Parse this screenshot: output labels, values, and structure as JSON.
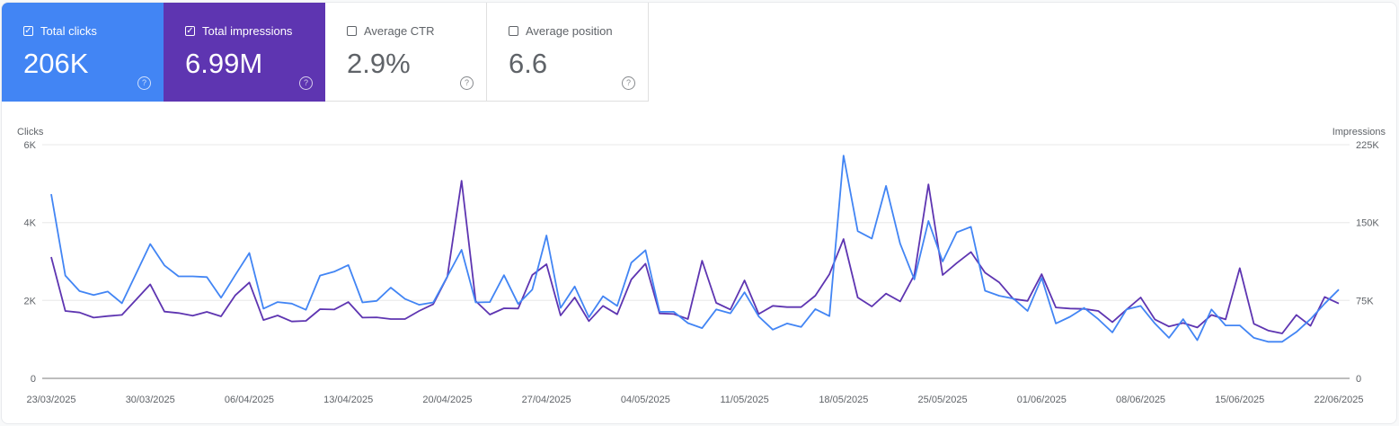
{
  "metrics": [
    {
      "label": "Total clicks",
      "value": "206K",
      "checked": true,
      "color": "#4285f4"
    },
    {
      "label": "Total impressions",
      "value": "6.99M",
      "checked": true,
      "color": "#5e35b1"
    },
    {
      "label": "Average CTR",
      "value": "2.9%",
      "checked": false
    },
    {
      "label": "Average position",
      "value": "6.6",
      "checked": false
    }
  ],
  "chart_data": {
    "type": "line",
    "left_axis": {
      "label": "Clicks",
      "ticks": [
        "0",
        "2K",
        "4K",
        "6K"
      ],
      "range": [
        0,
        6000
      ]
    },
    "right_axis": {
      "label": "Impressions",
      "ticks": [
        "0",
        "75K",
        "150K",
        "225K"
      ],
      "range": [
        0,
        225000
      ]
    },
    "x_start": "23/03/2025",
    "x_end": "22/06/2025",
    "x_ticks": [
      "23/03/2025",
      "30/03/2025",
      "06/04/2025",
      "13/04/2025",
      "20/04/2025",
      "27/04/2025",
      "04/05/2025",
      "11/05/2025",
      "18/05/2025",
      "25/05/2025",
      "01/06/2025",
      "08/06/2025",
      "15/06/2025",
      "22/06/2025"
    ],
    "grid": true,
    "series": [
      {
        "name": "Clicks",
        "axis": "left",
        "color": "#4285f4",
        "values": [
          4730,
          2640,
          2240,
          2140,
          2230,
          1930,
          2690,
          3450,
          2900,
          2620,
          2620,
          2600,
          2070,
          2650,
          3220,
          1790,
          1960,
          1920,
          1760,
          2640,
          2740,
          2910,
          1950,
          1990,
          2330,
          2040,
          1890,
          1950,
          2620,
          3300,
          1950,
          1960,
          2650,
          1910,
          2280,
          3670,
          1810,
          2360,
          1570,
          2110,
          1860,
          2970,
          3290,
          1710,
          1710,
          1420,
          1290,
          1770,
          1670,
          2210,
          1590,
          1250,
          1410,
          1320,
          1780,
          1600,
          5720,
          3780,
          3590,
          4940,
          3460,
          2540,
          4040,
          3000,
          3750,
          3890,
          2250,
          2120,
          2050,
          1730,
          2580,
          1410,
          1580,
          1810,
          1520,
          1180,
          1770,
          1860,
          1410,
          1040,
          1520,
          980,
          1770,
          1360,
          1360,
          1040,
          940,
          940,
          1190,
          1520,
          1920,
          2280
        ]
      },
      {
        "name": "Impressions",
        "axis": "right",
        "color": "#5e35b1",
        "values": [
          116800,
          64900,
          63400,
          58500,
          60000,
          61100,
          75800,
          90500,
          64300,
          62900,
          60300,
          64000,
          59700,
          79900,
          92300,
          56200,
          60600,
          54800,
          55400,
          66600,
          66300,
          73500,
          58500,
          58800,
          57100,
          57100,
          64900,
          71500,
          98000,
          190300,
          74400,
          61400,
          67500,
          67200,
          99500,
          109900,
          60600,
          77900,
          55100,
          69800,
          61700,
          95200,
          110400,
          62600,
          62000,
          57100,
          113300,
          72700,
          66300,
          94300,
          62000,
          69800,
          68600,
          68600,
          79600,
          100300,
          134100,
          77900,
          69200,
          81600,
          74100,
          99500,
          186800,
          99500,
          111000,
          121700,
          101800,
          92300,
          76400,
          74600,
          100300,
          68300,
          67200,
          66900,
          64900,
          54200,
          66300,
          77900,
          56800,
          49900,
          53300,
          49000,
          61100,
          56800,
          106100,
          52500,
          46100,
          43300,
          61100,
          50500,
          78400,
          72100
        ]
      }
    ]
  }
}
